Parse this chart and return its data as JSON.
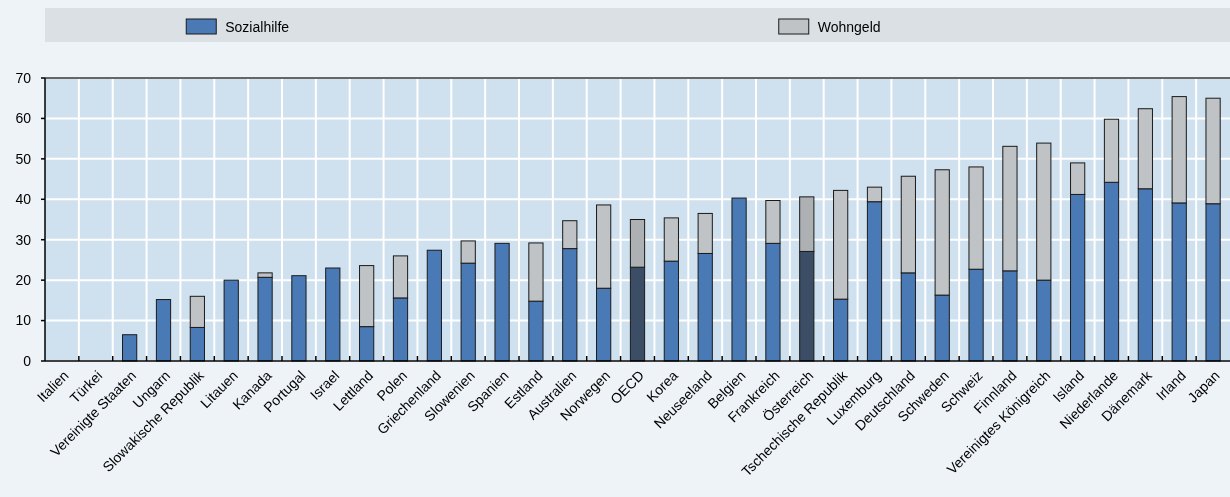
{
  "chart_data": {
    "type": "bar",
    "stacked": true,
    "categories": [
      "Italien",
      "Türkei",
      "Vereinigte Staaten",
      "Ungarn",
      "Slowakische Republik",
      "Litauen",
      "Kanada",
      "Portugal",
      "Israel",
      "Lettland",
      "Polen",
      "Griechenland",
      "Slowenien",
      "Spanien",
      "Estland",
      "Australien",
      "Norwegen",
      "OECD",
      "Korea",
      "Neuseeland",
      "Belgien",
      "Frankreich",
      "Österreich",
      "Tschechische Republik",
      "Luxemburg",
      "Deutschland",
      "Schweden",
      "Schweiz",
      "Finnland",
      "Vereinigtes Königreich",
      "Island",
      "Niederlande",
      "Dänemark",
      "Irland",
      "Japan"
    ],
    "series": [
      {
        "name": "Sozialhilfe",
        "color": "#4a7ab6",
        "colors": [
          null,
          null,
          "#4a7ab6",
          "#4a7ab6",
          "#4a7ab6",
          "#4a7ab6",
          "#4a7ab6",
          "#4a7ab6",
          "#4a7ab6",
          "#4a7ab6",
          "#4a7ab6",
          "#4a7ab6",
          "#4a7ab6",
          "#4a7ab6",
          "#4a7ab6",
          "#4a7ab6",
          "#4a7ab6",
          "#3c4d66",
          "#4a7ab6",
          "#4a7ab6",
          "#4a7ab6",
          "#4a7ab6",
          "#3c4d66",
          "#4a7ab6",
          "#4a7ab6",
          "#4a7ab6",
          "#4a7ab6",
          "#4a7ab6",
          "#4a7ab6",
          "#4a7ab6",
          "#4a7ab6",
          "#4a7ab6",
          "#4a7ab6",
          "#4a7ab6",
          "#4a7ab6"
        ],
        "values": [
          null,
          null,
          6.5,
          15.2,
          8.3,
          20,
          20.7,
          21.1,
          23,
          8.5,
          15.6,
          27.4,
          24.2,
          29.1,
          14.8,
          27.8,
          18,
          23.2,
          24.7,
          26.6,
          40.3,
          29.1,
          27.1,
          15.3,
          39.4,
          21.8,
          16.3,
          22.7,
          22.3,
          20,
          41.2,
          44.2,
          42.6,
          39.1,
          38.9
        ]
      },
      {
        "name": "Wohngeld",
        "color": "#bfc3c6",
        "colors": [
          null,
          null,
          null,
          null,
          "#bfc3c6",
          null,
          "#bfc3c6",
          null,
          null,
          "#bfc3c6",
          "#bfc3c6",
          null,
          "#bfc3c6",
          null,
          "#bfc3c6",
          "#bfc3c6",
          "#bfc3c6",
          "#adb1b4",
          "#bfc3c6",
          "#bfc3c6",
          null,
          "#bfc3c6",
          "#adb1b4",
          "#bfc3c6",
          "#bfc3c6",
          "#bfc3c6",
          "#bfc3c6",
          "#bfc3c6",
          "#bfc3c6",
          "#bfc3c6",
          "#bfc3c6",
          "#bfc3c6",
          "#bfc3c6",
          "#bfc3c6",
          "#bfc3c6"
        ],
        "values": [
          null,
          null,
          null,
          null,
          7.7,
          null,
          1.1,
          null,
          null,
          15.1,
          10.4,
          null,
          5.5,
          null,
          14.4,
          6.9,
          20.6,
          11.8,
          10.7,
          9.9,
          null,
          10.6,
          13.5,
          26.9,
          3.6,
          23.9,
          31,
          25.3,
          30.8,
          33.9,
          7.8,
          15.6,
          19.8,
          26.3,
          26.1
        ]
      }
    ],
    "ylim": [
      0,
      70
    ],
    "yticks": [
      0,
      10,
      20,
      30,
      40,
      50,
      60,
      70
    ],
    "grid": true,
    "legend": "top"
  }
}
